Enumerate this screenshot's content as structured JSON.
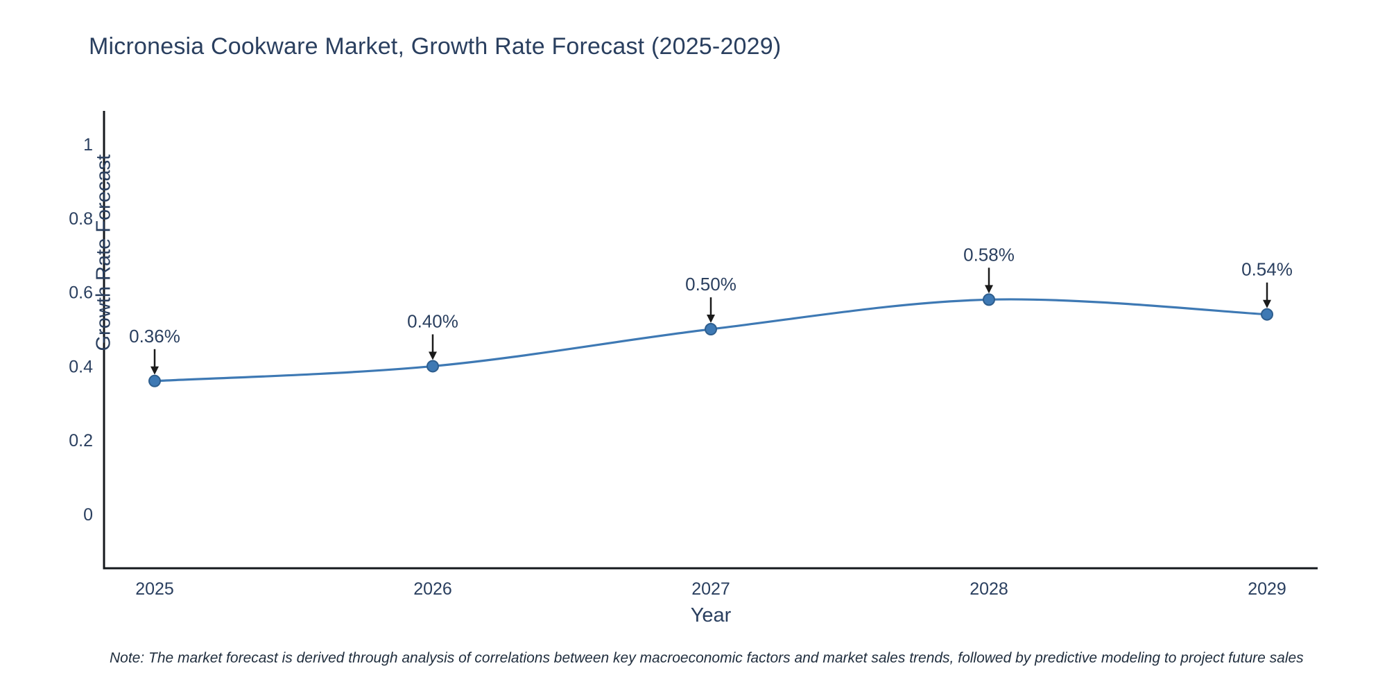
{
  "title": "Micronesia Cookware Market, Growth Rate Forecast (2025-2029)",
  "note": "Note: The market forecast is derived through analysis of correlations between key macroeconomic factors and market sales trends, followed by predictive modeling to project future sales",
  "chart_data": {
    "type": "line",
    "title": "Micronesia Cookware Market, Growth Rate Forecast (2025-2029)",
    "xlabel": "Year",
    "ylabel": "Growth Rate Forecast",
    "categories": [
      "2025",
      "2026",
      "2027",
      "2028",
      "2029"
    ],
    "series": [
      {
        "name": "Growth Rate Forecast",
        "values": [
          0.36,
          0.4,
          0.5,
          0.58,
          0.54
        ]
      }
    ],
    "point_labels": [
      "0.36%",
      "0.40%",
      "0.50%",
      "0.58%",
      "0.54%"
    ],
    "yticks": [
      0,
      0.2,
      0.4,
      0.6,
      0.8,
      1
    ],
    "ylim": [
      -0.146,
      1.09
    ],
    "line_shape": "spline",
    "grid": false,
    "legend": false,
    "colors": {
      "line": "#3E79B4",
      "marker_fill": "#3E79B4",
      "marker_edge": "#2E5E8E",
      "axis": "#14181c",
      "tick_text": "#2a3f5f",
      "annotation_text": "#2a3f5f",
      "arrow": "#1a1a1a"
    }
  }
}
